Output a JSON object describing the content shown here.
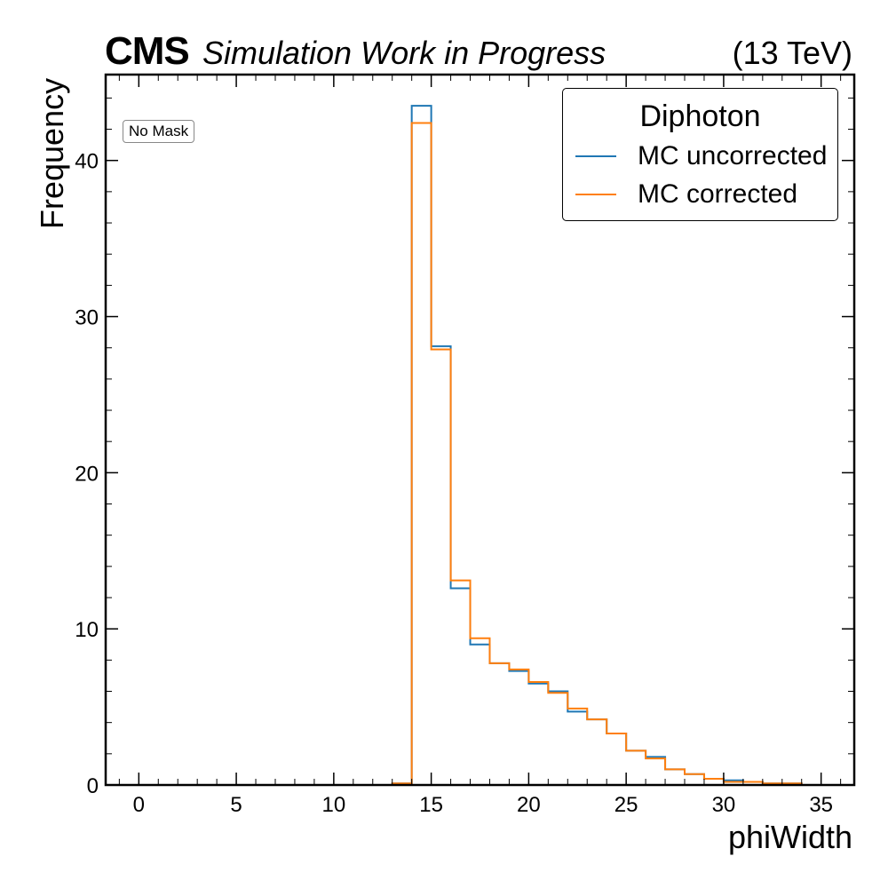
{
  "header": {
    "experiment": "CMS",
    "status": "Simulation Work in Progress",
    "energy": "(13 TeV)"
  },
  "annotation": "No Mask",
  "chart_data": {
    "type": "histogram-step",
    "xlabel": "phiWidth",
    "ylabel": "Frequency",
    "xlim": [
      -1.7,
      36.7
    ],
    "ylim": [
      0,
      45.5
    ],
    "xticks": [
      0,
      5,
      10,
      15,
      20,
      25,
      30,
      35
    ],
    "yticks": [
      0,
      10,
      20,
      30,
      40
    ],
    "bin_edges": [
      0,
      1,
      2,
      3,
      4,
      5,
      6,
      7,
      8,
      9,
      10,
      11,
      12,
      13,
      14,
      15,
      16,
      17,
      18,
      19,
      20,
      21,
      22,
      23,
      24,
      25,
      26,
      27,
      28,
      29,
      30,
      31,
      32,
      33,
      34,
      35
    ],
    "legend": {
      "title": "Diphoton",
      "location": "top-right"
    },
    "series": [
      {
        "name": "MC uncorrected",
        "color": "#1f77b4",
        "values": [
          0,
          0,
          0,
          0,
          0,
          0,
          0,
          0,
          0,
          0,
          0,
          0,
          0,
          0.1,
          43.5,
          28.1,
          12.6,
          9.0,
          7.8,
          7.3,
          6.5,
          6.0,
          4.7,
          4.2,
          3.3,
          2.2,
          1.8,
          1.0,
          0.7,
          0.4,
          0.3,
          0.2,
          0.1,
          0.1,
          0
        ]
      },
      {
        "name": "MC corrected",
        "color": "#ff7f0e",
        "values": [
          0,
          0,
          0,
          0,
          0,
          0,
          0,
          0,
          0,
          0,
          0,
          0,
          0,
          0.1,
          42.4,
          27.9,
          13.1,
          9.4,
          7.8,
          7.4,
          6.6,
          5.9,
          4.9,
          4.2,
          3.3,
          2.2,
          1.7,
          1.0,
          0.7,
          0.4,
          0.2,
          0.2,
          0.1,
          0.1,
          0
        ]
      }
    ]
  }
}
